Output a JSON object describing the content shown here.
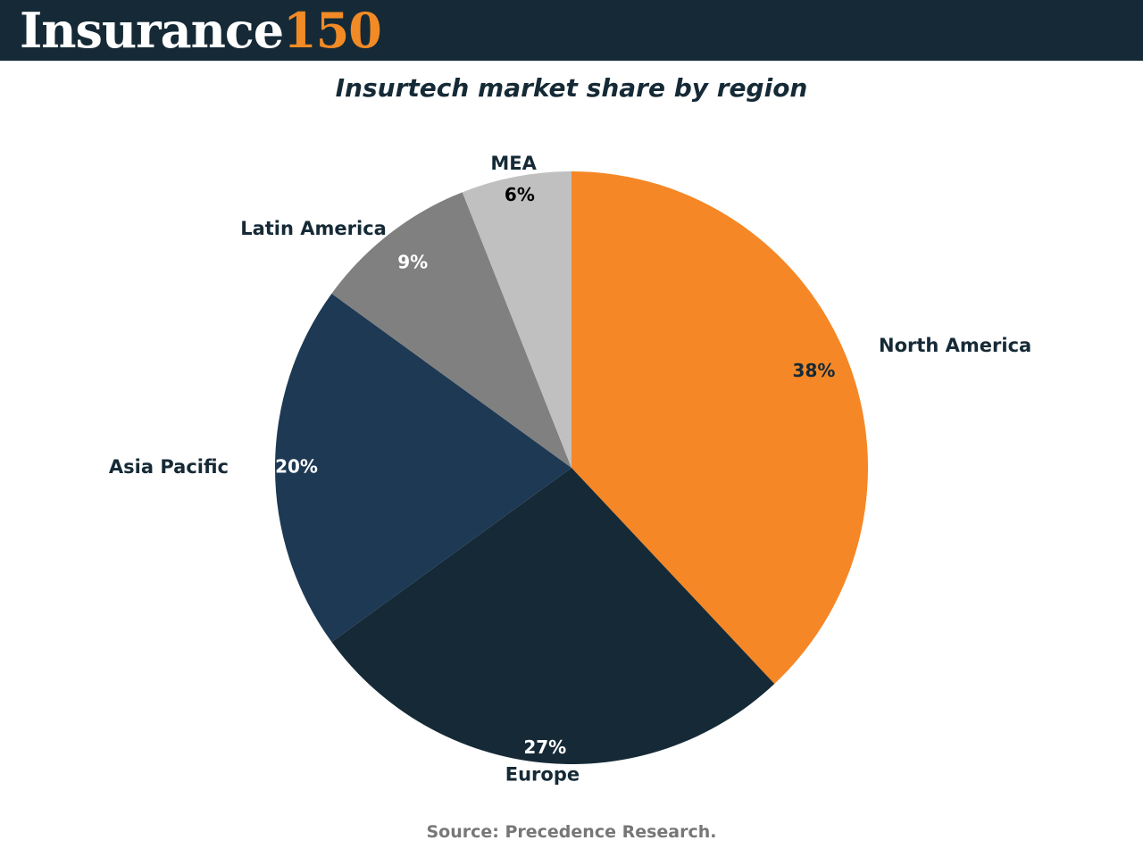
{
  "header": {
    "logo_word": "Insurance",
    "logo_number": "150",
    "background_color": "#152a36",
    "accent_color": "#f28a26"
  },
  "chart_data": {
    "type": "pie",
    "title": "Insurtech market share by region",
    "categories": [
      "North America",
      "Europe",
      "Asia Pacific",
      "Latin America",
      "MEA"
    ],
    "values": [
      38,
      27,
      20,
      9,
      6
    ],
    "value_labels": [
      "38%",
      "27%",
      "20%",
      "9%",
      "6%"
    ],
    "colors": [
      "#f58726",
      "#152a36",
      "#1e3954",
      "#808080",
      "#c0c0c0"
    ],
    "value_label_colors": [
      "#152a36",
      "#ffffff",
      "#ffffff",
      "#ffffff",
      "#000000"
    ],
    "start": "top",
    "direction": "clockwise"
  },
  "footer": {
    "source": "Source: Precedence Research."
  }
}
